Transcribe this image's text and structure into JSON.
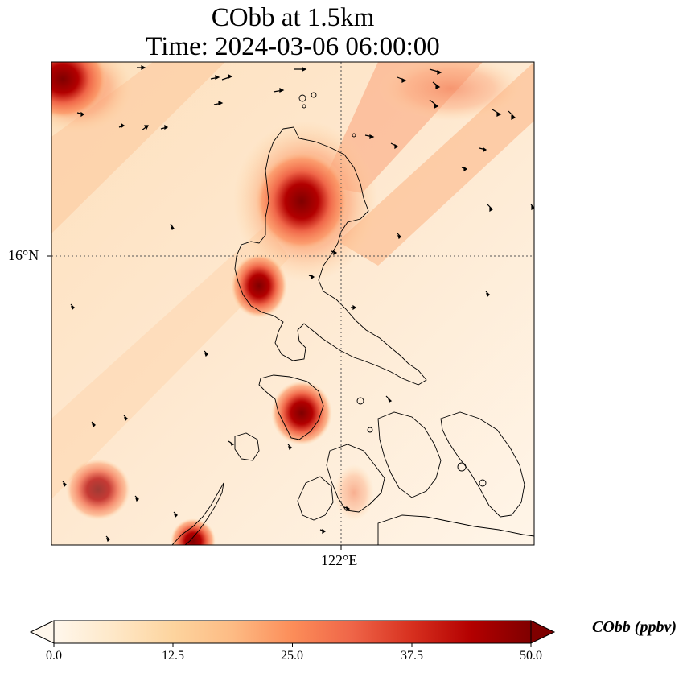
{
  "title": {
    "line1": "CObb at 1.5km",
    "line2": "Time: 2024-03-06 06:00:00"
  },
  "axes": {
    "lat_label": "16°N",
    "lon_label": "122°E",
    "gridlines": "dotted"
  },
  "colorbar": {
    "label": "CObb (ppbv)",
    "colormap": "OrRd",
    "min": 0.0,
    "max": 50.0,
    "extend": "both",
    "ticks": [
      "0.0",
      "12.5",
      "25.0",
      "37.5",
      "50.0"
    ]
  },
  "colors": {
    "low": "#fff7ec",
    "mid": "#fdbb84",
    "high": "#7f0000"
  }
}
